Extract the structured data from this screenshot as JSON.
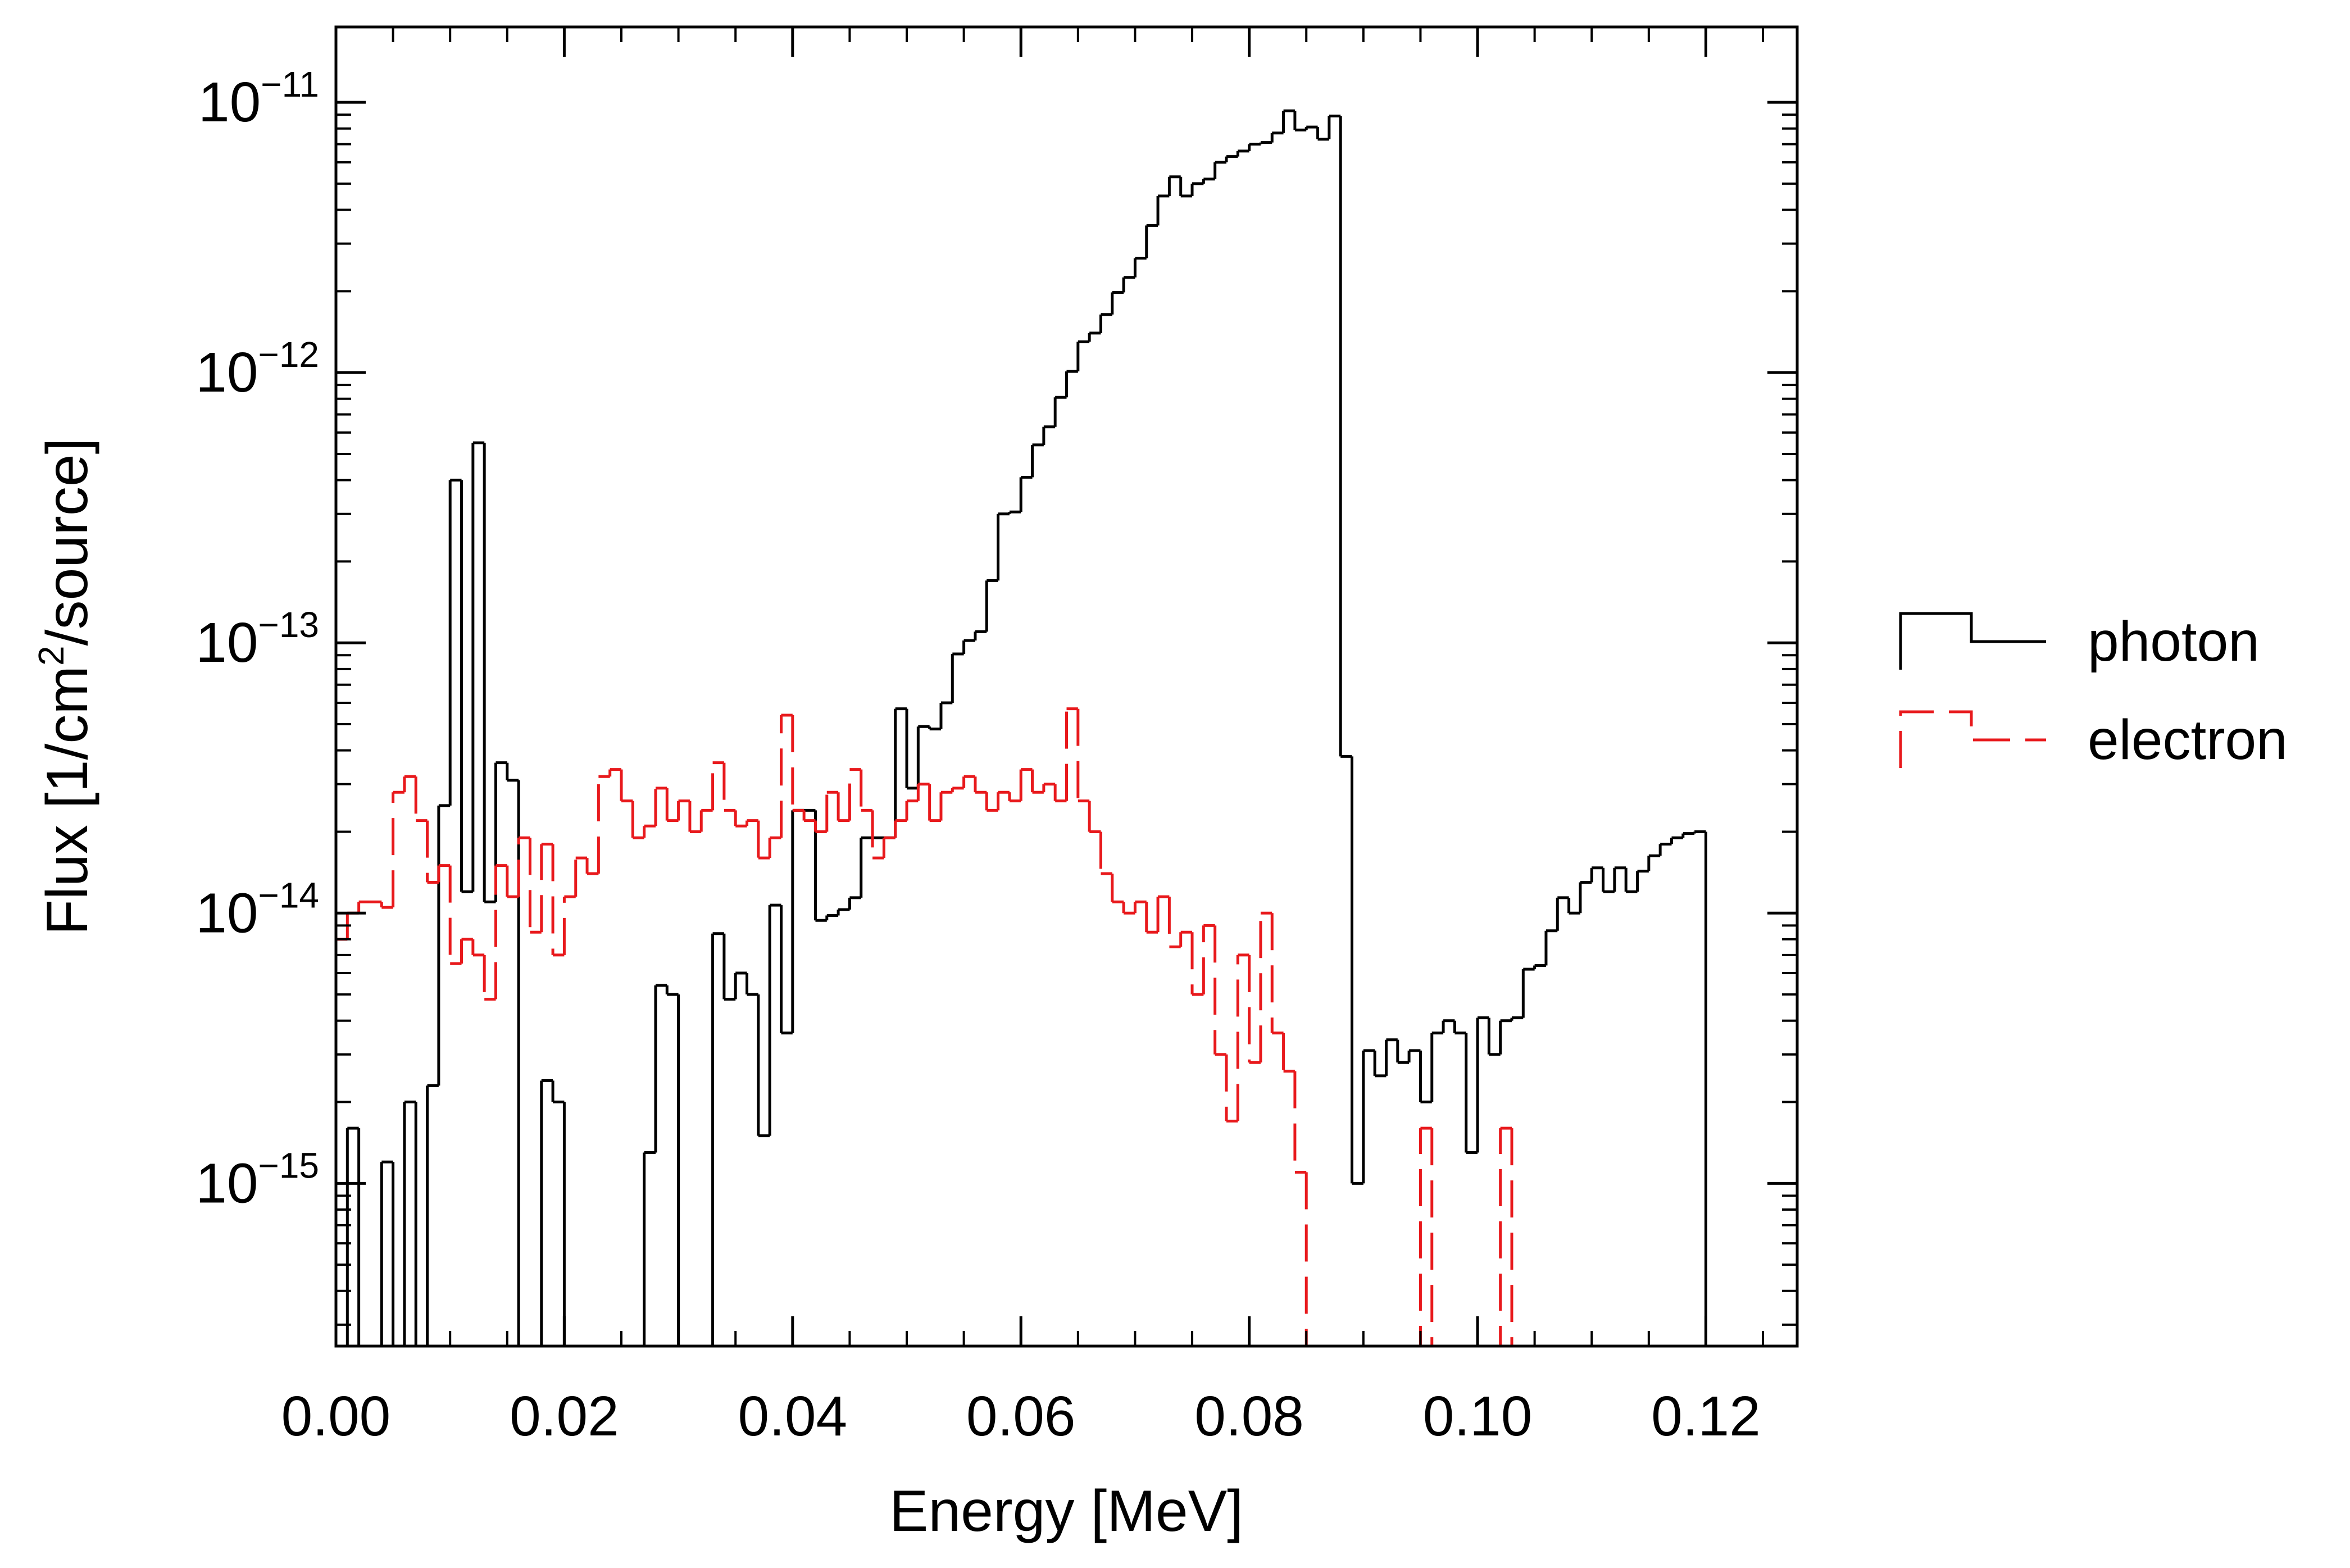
{
  "chart_data": {
    "type": "histogram",
    "x_label": "Energy [MeV]",
    "y_label": [
      "Flux  [1/cm",
      "2",
      "/source]"
    ],
    "log_y": true,
    "legend": "right",
    "xlim": [
      0,
      0.128
    ],
    "ylim": [
      2.5e-16,
      1.9e-11
    ],
    "xticks": [
      {
        "value": 0,
        "label": "0.00"
      },
      {
        "value": 0.02,
        "label": "0.02"
      },
      {
        "value": 0.04,
        "label": "0.04"
      },
      {
        "value": 0.06,
        "label": "0.06"
      },
      {
        "value": 0.08,
        "label": "0.08"
      },
      {
        "value": 0.1,
        "label": "0.10"
      },
      {
        "value": 0.12,
        "label": "0.12"
      }
    ],
    "yticks": [
      {
        "value": 1e-15,
        "label": "10",
        "exponent": "−15"
      },
      {
        "value": 1e-14,
        "label": "10",
        "exponent": "−14"
      },
      {
        "value": 1e-13,
        "label": "10",
        "exponent": "−13"
      },
      {
        "value": 1e-12,
        "label": "10",
        "exponent": "−12"
      },
      {
        "value": 1e-11,
        "label": "10",
        "exponent": "−11"
      }
    ],
    "bins": [
      0,
      0.001,
      0.002,
      0.003,
      0.004,
      0.005,
      0.006,
      0.007,
      0.008,
      0.009,
      0.01,
      0.011,
      0.012,
      0.013,
      0.014,
      0.015,
      0.016,
      0.017,
      0.018,
      0.019,
      0.02,
      0.021,
      0.022,
      0.023,
      0.024,
      0.025,
      0.026,
      0.027,
      0.028,
      0.029,
      0.03,
      0.031,
      0.032,
      0.033,
      0.034,
      0.035,
      0.036,
      0.037,
      0.038,
      0.039,
      0.04,
      0.041,
      0.042,
      0.043,
      0.044,
      0.045,
      0.046,
      0.047,
      0.048,
      0.049,
      0.05,
      0.051,
      0.052,
      0.053,
      0.054,
      0.055,
      0.056,
      0.057,
      0.058,
      0.059,
      0.06,
      0.061,
      0.062,
      0.063,
      0.064,
      0.065,
      0.066,
      0.067,
      0.068,
      0.069,
      0.07,
      0.071,
      0.072,
      0.073,
      0.074,
      0.075,
      0.076,
      0.077,
      0.078,
      0.079,
      0.08,
      0.081,
      0.082,
      0.083,
      0.084,
      0.085,
      0.086,
      0.087,
      0.088,
      0.089,
      0.09,
      0.091,
      0.092,
      0.093,
      0.094,
      0.095,
      0.096,
      0.097,
      0.098,
      0.099,
      0.1,
      0.101,
      0.102,
      0.103,
      0.104,
      0.105,
      0.106,
      0.107,
      0.108,
      0.109,
      0.11,
      0.111,
      0.112,
      0.113,
      0.114,
      0.115,
      0.116,
      0.117,
      0.118,
      0.119,
      0.12
    ],
    "series": [
      {
        "name": "photon",
        "color": "#000000",
        "dashed": false,
        "values": [
          0,
          1.6e-15,
          0,
          0,
          1.2e-15,
          0,
          2e-15,
          0,
          2.3e-15,
          2.5e-14,
          4e-13,
          1.2e-14,
          5.5e-13,
          1.1e-14,
          3.6e-14,
          3.1e-14,
          0,
          0,
          2.4e-15,
          2e-15,
          0,
          0,
          0,
          0,
          0,
          0,
          0,
          1.3e-15,
          5.4e-15,
          5e-15,
          0,
          0,
          0,
          8.4e-15,
          4.8e-15,
          6e-15,
          5e-15,
          1.5e-15,
          1.07e-14,
          3.6e-15,
          2.4e-14,
          2.4e-14,
          9.4e-15,
          9.8e-15,
          1.03e-14,
          1.14e-14,
          1.9e-14,
          1.9e-14,
          1.9e-14,
          5.7e-14,
          2.9e-14,
          4.9e-14,
          4.8e-14,
          6e-14,
          9.1e-14,
          1.02e-13,
          1.1e-13,
          1.7e-13,
          3e-13,
          3.05e-13,
          4.1e-13,
          5.4e-13,
          6.3e-13,
          8.1e-13,
          1.01e-12,
          1.3e-12,
          1.4e-12,
          1.64e-12,
          1.98e-12,
          2.25e-12,
          2.65e-12,
          3.5e-12,
          4.5e-12,
          5.3e-12,
          4.5e-12,
          5e-12,
          5.2e-12,
          6e-12,
          6.3e-12,
          6.6e-12,
          7e-12,
          7.1e-12,
          7.7e-12,
          9.3e-12,
          7.9e-12,
          8.1e-12,
          7.3e-12,
          8.9e-12,
          3.8e-14,
          1e-15,
          3.1e-15,
          2.5e-15,
          3.4e-15,
          2.8e-15,
          3.1e-15,
          2e-15,
          3.6e-15,
          4e-15,
          3.6e-15,
          1.3e-15,
          4.1e-15,
          3e-15,
          4e-15,
          4.1e-15,
          6.2e-15,
          6.4e-15,
          8.6e-15,
          1.14e-14,
          1e-14,
          1.3e-14,
          1.47e-14,
          1.2e-14,
          1.47e-14,
          1.2e-14,
          1.43e-14,
          1.63e-14,
          1.8e-14,
          1.9e-14,
          1.97e-14,
          2e-14
        ]
      },
      {
        "name": "electron",
        "color": "#e8191c",
        "dashed": true,
        "values": [
          8e-15,
          1e-14,
          1.1e-14,
          1.1e-14,
          1.05e-14,
          2.8e-14,
          3.2e-14,
          2.2e-14,
          1.3e-14,
          1.5e-14,
          6.5e-15,
          8e-15,
          7e-15,
          4.8e-15,
          1.5e-14,
          1.15e-14,
          1.9e-14,
          8.5e-15,
          1.8e-14,
          7e-15,
          1.15e-14,
          1.6e-14,
          1.4e-14,
          3.2e-14,
          3.4e-14,
          2.6e-14,
          1.9e-14,
          2.1e-14,
          2.9e-14,
          2.2e-14,
          2.6e-14,
          2e-14,
          2.4e-14,
          3.6e-14,
          2.4e-14,
          2.1e-14,
          2.2e-14,
          1.6e-14,
          1.9e-14,
          5.4e-14,
          2.4e-14,
          2.2e-14,
          2e-14,
          2.8e-14,
          2.2e-14,
          3.4e-14,
          2.4e-14,
          1.6e-14,
          1.9e-14,
          2.2e-14,
          2.6e-14,
          3e-14,
          2.2e-14,
          2.8e-14,
          2.9e-14,
          3.2e-14,
          2.8e-14,
          2.4e-14,
          2.8e-14,
          2.6e-14,
          3.4e-14,
          2.8e-14,
          3e-14,
          2.6e-14,
          5.7e-14,
          2.6e-14,
          2e-14,
          1.4e-14,
          1.1e-14,
          1e-14,
          1.1e-14,
          8.5e-15,
          1.15e-14,
          7.5e-15,
          8.5e-15,
          5e-15,
          9e-15,
          3e-15,
          1.7e-15,
          7e-15,
          2.8e-15,
          1e-14,
          3.6e-15,
          2.6e-15,
          1.1e-15,
          0,
          0,
          0,
          0,
          0,
          0,
          0,
          0,
          0,
          0,
          1.6e-15,
          0,
          0,
          0,
          0,
          0,
          0,
          1.6e-15,
          0,
          0,
          0,
          0,
          0,
          0,
          0,
          0,
          0,
          0,
          0,
          0,
          0,
          0,
          0,
          0,
          0
        ]
      }
    ]
  }
}
